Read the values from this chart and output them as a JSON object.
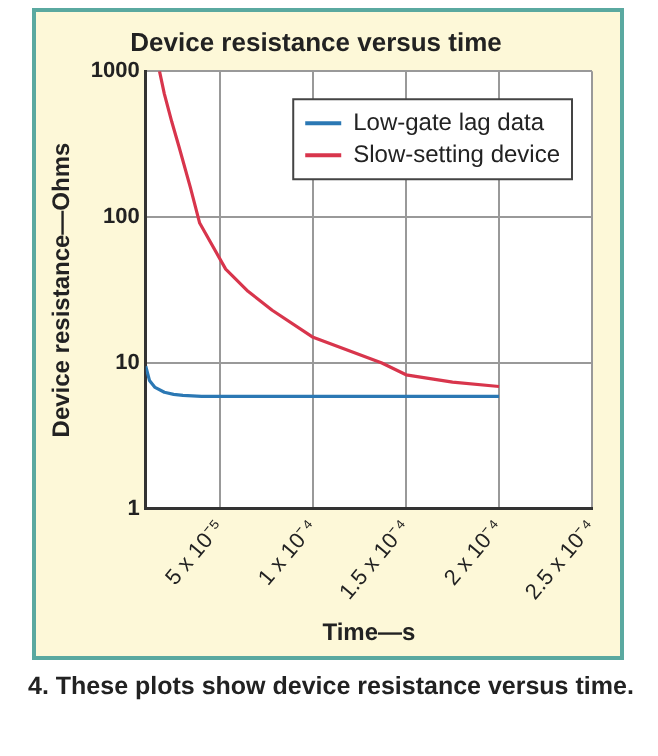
{
  "chart_data": {
    "type": "line",
    "title": "Device resistance versus time",
    "xlabel": "Time—s",
    "ylabel": "Device resistance—Ohms",
    "annotations": [
      "4. These plots show device resistance versus time."
    ],
    "series": [
      {
        "name": "Low-gate lag data",
        "color": "#2b78b4",
        "x": [
          1e-05,
          1.2e-05,
          1.5e-05,
          2e-05,
          2.5e-05,
          3e-05,
          4e-05,
          6e-05,
          0.0001,
          0.00015,
          0.0002
        ],
        "values": [
          9.5,
          7.6,
          6.8,
          6.3,
          6.1,
          6.0,
          5.9,
          5.9,
          5.9,
          5.9,
          5.9
        ]
      },
      {
        "name": "Slow-setting device",
        "color": "#d8354c",
        "x": [
          1.74e-05,
          2e-05,
          2.4e-05,
          2.8e-05,
          3.4e-05,
          3.9e-05,
          5.3e-05,
          6.5e-05,
          7.8e-05,
          0.0001,
          0.000137,
          0.00015,
          0.000175,
          0.0002
        ],
        "values": [
          1000,
          700,
          450,
          300,
          160,
          91,
          44,
          31,
          23,
          15,
          10,
          8.3,
          7.4,
          6.9
        ]
      }
    ],
    "xlim": [
      1e-05,
      0.00025
    ],
    "xticks": [
      {
        "value": 5e-05,
        "label": "5 x 10⁻⁵"
      },
      {
        "value": 0.0001,
        "label": "1 x 10⁻⁴"
      },
      {
        "value": 0.00015,
        "label": "1.5 x 10⁻⁴"
      },
      {
        "value": 0.0002,
        "label": "2 x 10⁻⁴"
      },
      {
        "value": 0.00025,
        "label": "2.5 x 10⁻⁴"
      }
    ],
    "ylim": [
      1,
      1000
    ],
    "yticks": [
      1,
      10,
      100,
      1000
    ],
    "log": "y",
    "grid": true,
    "legend": "top right",
    "marker": "none",
    "line_style": "solid"
  }
}
